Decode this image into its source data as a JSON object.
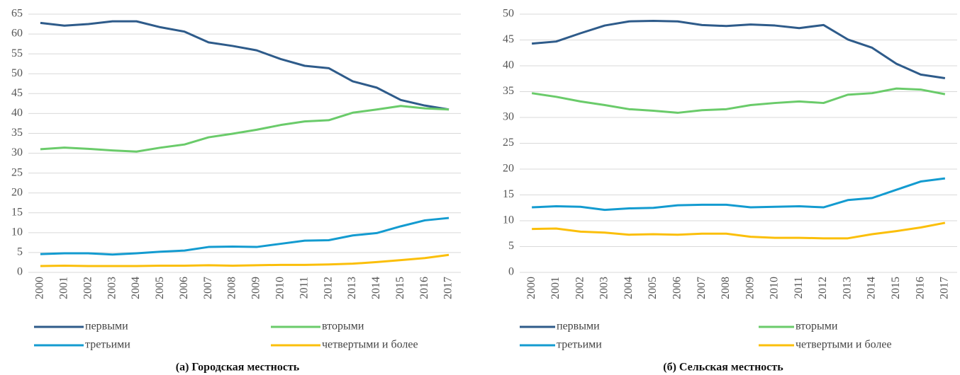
{
  "chart_data": [
    {
      "type": "line",
      "caption": "(а) Городская местность",
      "categories": [
        "2000",
        "2001",
        "2002",
        "2003",
        "2004",
        "2005",
        "2006",
        "2007",
        "2008",
        "2009",
        "2010",
        "2011",
        "2012",
        "2013",
        "2014",
        "2015",
        "2016",
        "2017"
      ],
      "ylim": [
        0,
        65
      ],
      "yticks": [
        0,
        5,
        10,
        15,
        20,
        25,
        30,
        35,
        40,
        45,
        50,
        55,
        60,
        65
      ],
      "grid": true,
      "series": [
        {
          "name": "первыми",
          "color": "#2e5b8a",
          "values": [
            62.8,
            62.1,
            62.5,
            63.2,
            63.2,
            61.7,
            60.6,
            57.9,
            57.0,
            55.9,
            53.7,
            52.0,
            51.4,
            48.1,
            46.5,
            43.4,
            42.0,
            41.0
          ]
        },
        {
          "name": "вторыми",
          "color": "#6acb6a",
          "values": [
            31.0,
            31.4,
            31.1,
            30.7,
            30.4,
            31.4,
            32.2,
            34.0,
            34.9,
            35.9,
            37.1,
            38.0,
            38.3,
            40.2,
            41.0,
            41.9,
            41.3,
            41.0
          ]
        },
        {
          "name": "третьими",
          "color": "#139bd0",
          "values": [
            4.6,
            4.8,
            4.8,
            4.5,
            4.8,
            5.2,
            5.5,
            6.4,
            6.5,
            6.4,
            7.2,
            8.0,
            8.1,
            9.3,
            9.9,
            11.6,
            13.1,
            13.7
          ]
        },
        {
          "name": "четвертыми и более",
          "color": "#fbbf0a",
          "values": [
            1.6,
            1.7,
            1.6,
            1.6,
            1.6,
            1.7,
            1.7,
            1.8,
            1.7,
            1.8,
            1.9,
            1.9,
            2.0,
            2.2,
            2.6,
            3.1,
            3.6,
            4.4
          ]
        }
      ]
    },
    {
      "type": "line",
      "caption": "(б) Сельская местность",
      "categories": [
        "2000",
        "2001",
        "2002",
        "2003",
        "2004",
        "2005",
        "2006",
        "2007",
        "2008",
        "2009",
        "2010",
        "2011",
        "2012",
        "2013",
        "2014",
        "2015",
        "2016",
        "2017"
      ],
      "ylim": [
        0,
        50
      ],
      "yticks": [
        0,
        5,
        10,
        15,
        20,
        25,
        30,
        35,
        40,
        45,
        50
      ],
      "grid": true,
      "series": [
        {
          "name": "первыми",
          "color": "#2e5b8a",
          "values": [
            44.3,
            44.7,
            46.3,
            47.8,
            48.6,
            48.7,
            48.6,
            47.9,
            47.7,
            48.0,
            47.8,
            47.3,
            47.9,
            45.1,
            43.5,
            40.4,
            38.3,
            37.6
          ]
        },
        {
          "name": "вторыми",
          "color": "#6acb6a",
          "values": [
            34.7,
            34.0,
            33.1,
            32.4,
            31.6,
            31.3,
            30.9,
            31.4,
            31.6,
            32.4,
            32.8,
            33.1,
            32.8,
            34.4,
            34.7,
            35.6,
            35.4,
            34.5
          ]
        },
        {
          "name": "третьими",
          "color": "#139bd0",
          "values": [
            12.6,
            12.8,
            12.7,
            12.1,
            12.4,
            12.5,
            13.0,
            13.1,
            13.1,
            12.6,
            12.7,
            12.8,
            12.6,
            14.0,
            14.4,
            16.0,
            17.6,
            18.2
          ]
        },
        {
          "name": "четвертыми и более",
          "color": "#fbbf0a",
          "values": [
            8.4,
            8.5,
            7.9,
            7.7,
            7.3,
            7.4,
            7.3,
            7.5,
            7.5,
            6.9,
            6.7,
            6.7,
            6.6,
            6.6,
            7.4,
            8.0,
            8.7,
            9.6
          ]
        }
      ]
    }
  ]
}
